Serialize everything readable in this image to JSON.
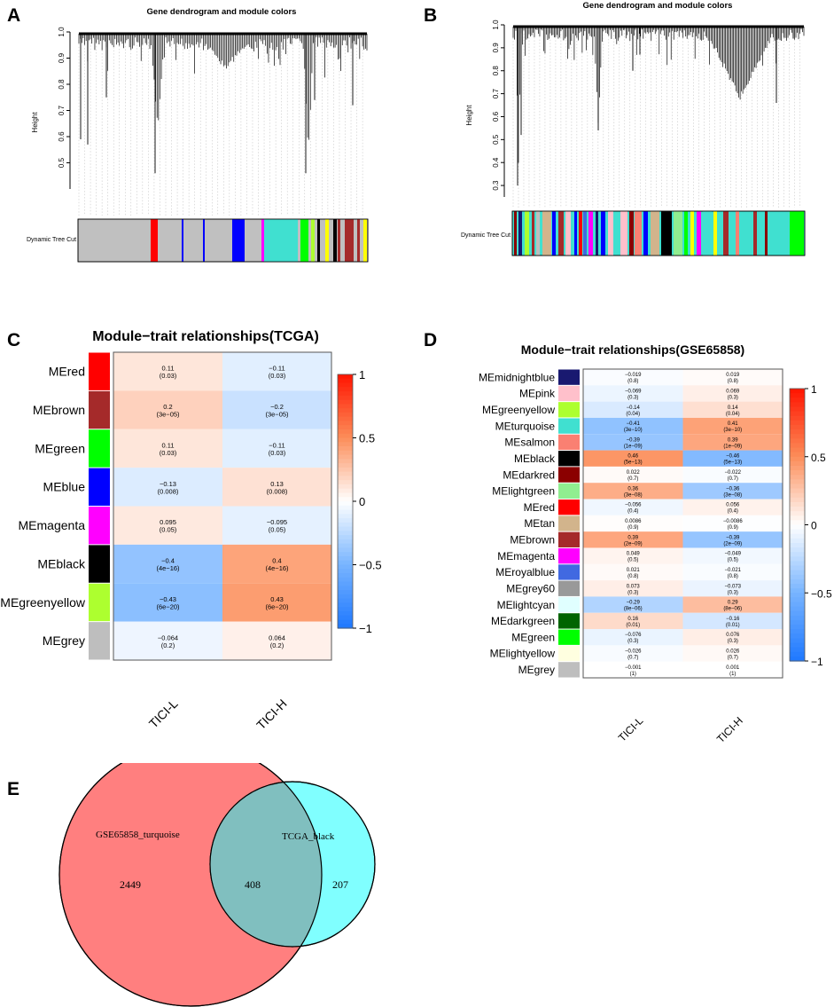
{
  "panels": {
    "A": {
      "letter": "A",
      "title": "Gene dendrogram and module colors",
      "ylabel": "Height",
      "yticks": [
        "0.5",
        "0.6",
        "0.7",
        "0.8",
        "0.9",
        "1.0"
      ],
      "track_label": "Dynamic Tree Cut"
    },
    "B": {
      "letter": "B",
      "title": "Gene dendrogram and module colors",
      "ylabel": "Height",
      "yticks": [
        "0.3",
        "0.4",
        "0.5",
        "0.6",
        "0.7",
        "0.8",
        "0.9",
        "1.0"
      ],
      "track_label": "Dynamic Tree Cut"
    },
    "C": {
      "letter": "C"
    },
    "D": {
      "letter": "D"
    },
    "E": {
      "letter": "E"
    }
  },
  "chart_data": [
    {
      "type": "dendrogram",
      "panel": "A",
      "title": "Gene dendrogram and module colors",
      "ylabel": "Height",
      "ylim": [
        0.4,
        1.0
      ],
      "track_label": "Dynamic Tree Cut",
      "module_colors": [
        "#bebebe",
        "#ff0000",
        "#bebebe",
        "#0000ff",
        "#bebebe",
        "#40e0d0",
        "#00ff00",
        "#ffff00",
        "#000000",
        "#a52a2a",
        "#adff2f",
        "#ff00ff"
      ]
    },
    {
      "type": "dendrogram",
      "panel": "B",
      "title": "Gene dendrogram and module colors",
      "ylabel": "Height",
      "ylim": [
        0.25,
        1.0
      ],
      "track_label": "Dynamic Tree Cut",
      "module_colors": [
        "#40e0d0",
        "#ffc0cb",
        "#a52a2a",
        "#ff00ff",
        "#0000ff",
        "#fa8072",
        "#000000",
        "#adff2f",
        "#ffff00",
        "#8b0000",
        "#00ff00"
      ]
    },
    {
      "type": "heatmap",
      "panel": "C",
      "title": "Module−trait relationships(TCGA)",
      "rows": [
        "MEred",
        "MEbrown",
        "MEgreen",
        "MEblue",
        "MEmagenta",
        "MEblack",
        "MEgreenyellow",
        "MEgrey"
      ],
      "row_colors": [
        "#ff0000",
        "#a52a2a",
        "#00ff00",
        "#0000ff",
        "#ff00ff",
        "#000000",
        "#adff2f",
        "#bebebe"
      ],
      "columns": [
        "TICI-L",
        "TICI-H"
      ],
      "values": [
        [
          0.11,
          -0.11
        ],
        [
          0.2,
          -0.2
        ],
        [
          0.11,
          -0.11
        ],
        [
          -0.13,
          0.13
        ],
        [
          0.095,
          -0.095
        ],
        [
          -0.4,
          0.4
        ],
        [
          -0.43,
          0.43
        ],
        [
          -0.064,
          0.064
        ]
      ],
      "value_labels": [
        [
          "0.11",
          "−0.11"
        ],
        [
          "0.2",
          "−0.2"
        ],
        [
          "0.11",
          "−0.11"
        ],
        [
          "−0.13",
          "0.13"
        ],
        [
          "0.095",
          "−0.095"
        ],
        [
          "−0.4",
          "0.4"
        ],
        [
          "−0.43",
          "0.43"
        ],
        [
          "−0.064",
          "0.064"
        ]
      ],
      "pvalues": [
        [
          "(0.03)",
          "(0.03)"
        ],
        [
          "(3e−05)",
          "(3e−05)"
        ],
        [
          "(0.03)",
          "(0.03)"
        ],
        [
          "(0.008)",
          "(0.008)"
        ],
        [
          "(0.05)",
          "(0.05)"
        ],
        [
          "(4e−16)",
          "(4e−16)"
        ],
        [
          "(6e−20)",
          "(6e−20)"
        ],
        [
          "(0.2)",
          "(0.2)"
        ]
      ],
      "colorbar_range": [
        -1,
        1
      ],
      "colorbar_ticks": [
        "1",
        "0.5",
        "0",
        "−0.5",
        "−1"
      ]
    },
    {
      "type": "heatmap",
      "panel": "D",
      "title": "Module−trait relationships(GSE65858)",
      "rows": [
        "MEmidnightblue",
        "MEpink",
        "MEgreenyellow",
        "MEturquoise",
        "MEsalmon",
        "MEblack",
        "MEdarkred",
        "MElightgreen",
        "MEred",
        "MEtan",
        "MEbrown",
        "MEmagenta",
        "MEroyalblue",
        "MEgrey60",
        "MElightcyan",
        "MEdarkgreen",
        "MEgreen",
        "MElightyellow",
        "MEgrey"
      ],
      "row_colors": [
        "#191970",
        "#ffc0cb",
        "#adff2f",
        "#40e0d0",
        "#fa8072",
        "#000000",
        "#8b0000",
        "#90ee90",
        "#ff0000",
        "#d2b48c",
        "#a52a2a",
        "#ff00ff",
        "#4169e1",
        "#999999",
        "#e0ffff",
        "#006400",
        "#00ff00",
        "#ffffe0",
        "#bebebe"
      ],
      "columns": [
        "TICI-L",
        "TICI-H"
      ],
      "values": [
        [
          -0.019,
          0.019
        ],
        [
          -0.069,
          0.069
        ],
        [
          -0.14,
          0.14
        ],
        [
          -0.41,
          0.41
        ],
        [
          -0.39,
          0.39
        ],
        [
          0.46,
          -0.46
        ],
        [
          0.022,
          -0.022
        ],
        [
          0.36,
          -0.36
        ],
        [
          -0.056,
          0.056
        ],
        [
          0.0086,
          -0.0086
        ],
        [
          0.39,
          -0.39
        ],
        [
          0.049,
          -0.049
        ],
        [
          0.021,
          -0.021
        ],
        [
          0.073,
          -0.073
        ],
        [
          -0.29,
          0.29
        ],
        [
          0.16,
          -0.16
        ],
        [
          -0.076,
          0.076
        ],
        [
          -0.026,
          0.026
        ],
        [
          -0.001,
          0.001
        ]
      ],
      "value_labels": [
        [
          "−0.019",
          "0.019"
        ],
        [
          "−0.069",
          "0.069"
        ],
        [
          "−0.14",
          "0.14"
        ],
        [
          "−0.41",
          "0.41"
        ],
        [
          "−0.39",
          "0.39"
        ],
        [
          "0.46",
          "−0.46"
        ],
        [
          "0.022",
          "−0.022"
        ],
        [
          "0.36",
          "−0.36"
        ],
        [
          "−0.056",
          "0.056"
        ],
        [
          "0.0086",
          "−0.0086"
        ],
        [
          "0.39",
          "−0.39"
        ],
        [
          "0.049",
          "−0.049"
        ],
        [
          "0.021",
          "−0.021"
        ],
        [
          "0.073",
          "−0.073"
        ],
        [
          "−0.29",
          "0.29"
        ],
        [
          "0.16",
          "−0.16"
        ],
        [
          "−0.076",
          "0.076"
        ],
        [
          "−0.026",
          "0.026"
        ],
        [
          "−0.001",
          "0.001"
        ]
      ],
      "pvalues": [
        [
          "(0.8)",
          "(0.8)"
        ],
        [
          "(0.3)",
          "(0.3)"
        ],
        [
          "(0.04)",
          "(0.04)"
        ],
        [
          "(3e−10)",
          "(3e−10)"
        ],
        [
          "(1e−09)",
          "(1e−09)"
        ],
        [
          "(5e−13)",
          "(5e−13)"
        ],
        [
          "(0.7)",
          "(0.7)"
        ],
        [
          "(3e−08)",
          "(3e−08)"
        ],
        [
          "(0.4)",
          "(0.4)"
        ],
        [
          "(0.9)",
          "(0.9)"
        ],
        [
          "(2e−09)",
          "(2e−09)"
        ],
        [
          "(0.5)",
          "(0.5)"
        ],
        [
          "(0.8)",
          "(0.8)"
        ],
        [
          "(0.3)",
          "(0.3)"
        ],
        [
          "(8e−06)",
          "(8e−06)"
        ],
        [
          "(0.01)",
          "(0.01)"
        ],
        [
          "(0.3)",
          "(0.3)"
        ],
        [
          "(0.7)",
          "(0.7)"
        ],
        [
          "(1)",
          "(1)"
        ]
      ],
      "colorbar_range": [
        -1,
        1
      ],
      "colorbar_ticks": [
        "1",
        "0.5",
        "0",
        "−0.5",
        "−1"
      ]
    },
    {
      "type": "venn",
      "panel": "E",
      "sets": [
        {
          "name": "GSE65858_turquoise",
          "only": 2449,
          "color": "#ff7f7f"
        },
        {
          "name": "TCGA_black",
          "only": 207,
          "color": "#80ffff"
        }
      ],
      "intersection": 408,
      "intersection_color": "#80bfbf"
    }
  ]
}
